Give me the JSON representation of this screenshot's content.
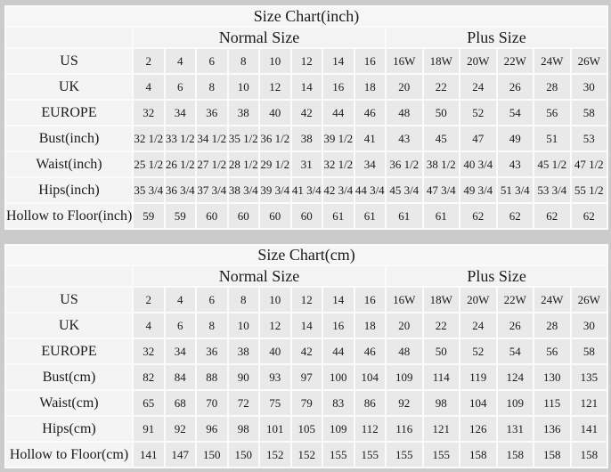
{
  "colors": {
    "page_background": "#cbcbcb",
    "grid_line": "#fbfbfb",
    "data_cell_background": "#e9e9e9",
    "label_cell_background": "#f4f4f4",
    "text": "#1a1a1a"
  },
  "chart_data": [
    {
      "type": "table",
      "title": "Size Chart(inch)",
      "column_groups": [
        {
          "label": "",
          "span": 1
        },
        {
          "label": "Normal Size",
          "span": 8
        },
        {
          "label": "Plus Size",
          "span": 6
        }
      ],
      "rows": [
        {
          "label": "US",
          "normal": [
            "2",
            "4",
            "6",
            "8",
            "10",
            "12",
            "14",
            "16"
          ],
          "plus": [
            "16W",
            "18W",
            "20W",
            "22W",
            "24W",
            "26W"
          ]
        },
        {
          "label": "UK",
          "normal": [
            "4",
            "6",
            "8",
            "10",
            "12",
            "14",
            "16",
            "18"
          ],
          "plus": [
            "20",
            "22",
            "24",
            "26",
            "28",
            "30"
          ]
        },
        {
          "label": "EUROPE",
          "normal": [
            "32",
            "34",
            "36",
            "38",
            "40",
            "42",
            "44",
            "46"
          ],
          "plus": [
            "48",
            "50",
            "52",
            "54",
            "56",
            "58"
          ]
        },
        {
          "label": "Bust(inch)",
          "normal": [
            "32 1/2",
            "33 1/2",
            "34 1/2",
            "35 1/2",
            "36 1/2",
            "38",
            "39 1/2",
            "41"
          ],
          "plus": [
            "43",
            "45",
            "47",
            "49",
            "51",
            "53"
          ]
        },
        {
          "label": "Waist(inch)",
          "normal": [
            "25 1/2",
            "26 1/2",
            "27 1/2",
            "28 1/2",
            "29 1/2",
            "31",
            "32 1/2",
            "34"
          ],
          "plus": [
            "36 1/2",
            "38 1/2",
            "40 3/4",
            "43",
            "45 1/2",
            "47 1/2"
          ]
        },
        {
          "label": "Hips(inch)",
          "normal": [
            "35 3/4",
            "36 3/4",
            "37 3/4",
            "38 3/4",
            "39 3/4",
            "41 3/4",
            "42 3/4",
            "44 3/4"
          ],
          "plus": [
            "45 3/4",
            "47 3/4",
            "49 3/4",
            "51 3/4",
            "53 3/4",
            "55 1/2"
          ]
        },
        {
          "label": "Hollow to Floor(inch)",
          "normal": [
            "59",
            "59",
            "60",
            "60",
            "60",
            "60",
            "61",
            "61"
          ],
          "plus": [
            "61",
            "61",
            "62",
            "62",
            "62",
            "62"
          ]
        }
      ]
    },
    {
      "type": "table",
      "title": "Size Chart(cm)",
      "column_groups": [
        {
          "label": "",
          "span": 1
        },
        {
          "label": "Normal Size",
          "span": 8
        },
        {
          "label": "Plus Size",
          "span": 6
        }
      ],
      "rows": [
        {
          "label": "US",
          "normal": [
            "2",
            "4",
            "6",
            "8",
            "10",
            "12",
            "14",
            "16"
          ],
          "plus": [
            "16W",
            "18W",
            "20W",
            "22W",
            "24W",
            "26W"
          ]
        },
        {
          "label": "UK",
          "normal": [
            "4",
            "6",
            "8",
            "10",
            "12",
            "14",
            "16",
            "18"
          ],
          "plus": [
            "20",
            "22",
            "24",
            "26",
            "28",
            "30"
          ]
        },
        {
          "label": "EUROPE",
          "normal": [
            "32",
            "34",
            "36",
            "38",
            "40",
            "42",
            "44",
            "46"
          ],
          "plus": [
            "48",
            "50",
            "52",
            "54",
            "56",
            "58"
          ]
        },
        {
          "label": "Bust(cm)",
          "normal": [
            "82",
            "84",
            "88",
            "90",
            "93",
            "97",
            "100",
            "104"
          ],
          "plus": [
            "109",
            "114",
            "119",
            "124",
            "130",
            "135"
          ]
        },
        {
          "label": "Waist(cm)",
          "normal": [
            "65",
            "68",
            "70",
            "72",
            "75",
            "79",
            "83",
            "86"
          ],
          "plus": [
            "92",
            "98",
            "104",
            "109",
            "115",
            "121"
          ]
        },
        {
          "label": "Hips(cm)",
          "normal": [
            "91",
            "92",
            "96",
            "98",
            "101",
            "105",
            "109",
            "112"
          ],
          "plus": [
            "116",
            "121",
            "126",
            "131",
            "136",
            "141"
          ]
        },
        {
          "label": "Hollow to Floor(cm)",
          "normal": [
            "141",
            "147",
            "150",
            "150",
            "152",
            "152",
            "155",
            "155"
          ],
          "plus": [
            "155",
            "155",
            "158",
            "158",
            "158",
            "158"
          ]
        }
      ]
    }
  ]
}
